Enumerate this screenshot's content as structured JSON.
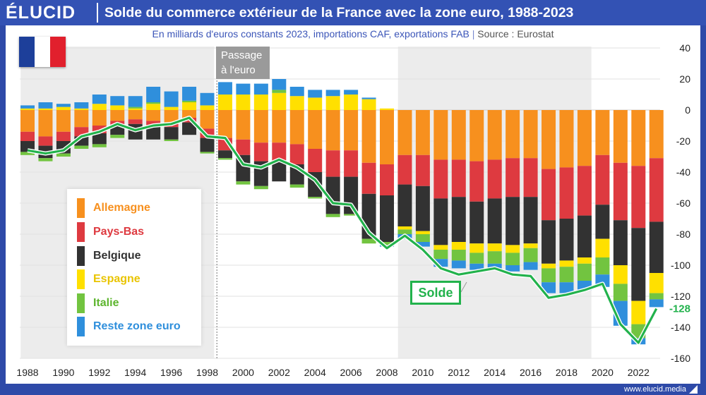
{
  "header": {
    "logo": "ÉLUCID",
    "title": "Solde du commerce extérieur de la France avec la zone euro, 1988-2023"
  },
  "subtitle": {
    "main": "En milliards d'euros constants 2023, importations CAF, exportations FAB",
    "separator": "|",
    "source": "Source : Eurostat"
  },
  "flag": {
    "country": "France",
    "colors": [
      "#1d3f9a",
      "#ffffff",
      "#e1202d"
    ]
  },
  "footer": {
    "site": "www.elucid.media"
  },
  "annotations": {
    "euro": [
      "Passage",
      "à l'euro"
    ],
    "solde_label": "Solde",
    "last_value_label": "-128"
  },
  "chart_data": {
    "type": "bar",
    "stacked": true,
    "title": "Solde du commerce extérieur de la France avec la zone euro, 1988-2023",
    "ylim": [
      -160,
      40
    ],
    "yticks": [
      40,
      20,
      0,
      -20,
      -40,
      -60,
      -80,
      -100,
      -120,
      -140,
      -160
    ],
    "xlim": [
      1988,
      2023
    ],
    "xticks": [
      1988,
      1990,
      1992,
      1994,
      1996,
      1998,
      2000,
      2002,
      2004,
      2006,
      2008,
      2010,
      2012,
      2014,
      2016,
      2018,
      2020,
      2022
    ],
    "shaded_periods": [
      [
        1988,
        1998
      ],
      [
        2009,
        2019
      ]
    ],
    "euro_year": 1999,
    "years": [
      1988,
      1989,
      1990,
      1991,
      1992,
      1993,
      1994,
      1995,
      1996,
      1997,
      1998,
      1999,
      2000,
      2001,
      2002,
      2003,
      2004,
      2005,
      2006,
      2007,
      2008,
      2009,
      2010,
      2011,
      2012,
      2013,
      2014,
      2015,
      2016,
      2017,
      2018,
      2019,
      2020,
      2021,
      2022,
      2023
    ],
    "series": [
      {
        "name": "Allemagne",
        "color": "#f7901e",
        "values": [
          -14,
          -17,
          -14,
          -11,
          -10,
          -7,
          -6,
          -7,
          -8,
          -5,
          -12,
          -18,
          -19,
          -21,
          -21,
          -22,
          -25,
          -26,
          -26,
          -34,
          -35,
          -29,
          -29,
          -32,
          -32,
          -33,
          -32,
          -31,
          -31,
          -38,
          -37,
          -36,
          -29,
          -34,
          -36,
          -31
        ]
      },
      {
        "name": "Pays-Bas",
        "color": "#de3a40",
        "values": [
          -6,
          -6,
          -6,
          -6,
          -5,
          -3,
          -3,
          -3,
          -3,
          -3,
          -6,
          -8,
          -10,
          -12,
          -12,
          -13,
          -15,
          -17,
          -17,
          -20,
          -20,
          -19,
          -20,
          -25,
          -24,
          -26,
          -25,
          -25,
          -25,
          -33,
          -33,
          -32,
          -32,
          -37,
          -40,
          -41
        ]
      },
      {
        "name": "Belgique",
        "color": "#323232",
        "values": [
          -7,
          -8,
          -8,
          -6,
          -7,
          -6,
          -10,
          -9,
          -8,
          -8,
          -9,
          -5,
          -17,
          -16,
          -13,
          -13,
          -16,
          -24,
          -24,
          -29,
          -30,
          -27,
          -29,
          -30,
          -29,
          -27,
          -29,
          -31,
          -30,
          -28,
          -27,
          -27,
          -22,
          -29,
          -47,
          -33
        ]
      },
      {
        "name": "Espagne",
        "color": "#ffe000",
        "values": [
          1,
          1,
          2,
          1,
          4,
          3,
          1,
          4,
          2,
          5,
          3,
          10,
          10,
          10,
          11,
          9,
          8,
          9,
          10,
          7,
          1,
          -2,
          -2,
          -3,
          -5,
          -6,
          -5,
          -5,
          -3,
          -3,
          -4,
          -4,
          -12,
          -12,
          -15,
          -13
        ]
      },
      {
        "name": "Italie",
        "color": "#72c440",
        "values": [
          -2,
          -2,
          -2,
          -2,
          -2,
          -2,
          1,
          1,
          -1,
          1,
          -1,
          -1,
          -2,
          -2,
          2,
          -2,
          -1,
          -2,
          -1,
          -3,
          -2,
          -3,
          -5,
          -6,
          -7,
          -7,
          -8,
          -8,
          -9,
          -9,
          -10,
          -11,
          -11,
          -11,
          -9,
          -4
        ]
      },
      {
        "name": "Reste zone euro",
        "color": "#2f8fdc",
        "values": [
          2,
          4,
          2,
          4,
          6,
          6,
          7,
          10,
          10,
          9,
          8,
          8,
          7,
          7,
          7,
          6,
          5,
          4,
          3,
          1,
          -1,
          -3,
          -3,
          -5,
          -5,
          -4,
          -4,
          -4,
          -5,
          -7,
          -7,
          -6,
          -8,
          -16,
          -4,
          -5
        ]
      }
    ],
    "line": {
      "name": "Solde",
      "color": "#22b24c",
      "values": [
        -26,
        -28,
        -26,
        -17,
        -14,
        -9,
        -13,
        -10,
        -9,
        -5,
        -17,
        -18,
        -35,
        -37,
        -32,
        -37,
        -45,
        -60,
        -61,
        -79,
        -89,
        -81,
        -90,
        -102,
        -106,
        -104,
        -102,
        -106,
        -107,
        -121,
        -119,
        -116,
        -112,
        -138,
        -150,
        -128
      ]
    }
  }
}
